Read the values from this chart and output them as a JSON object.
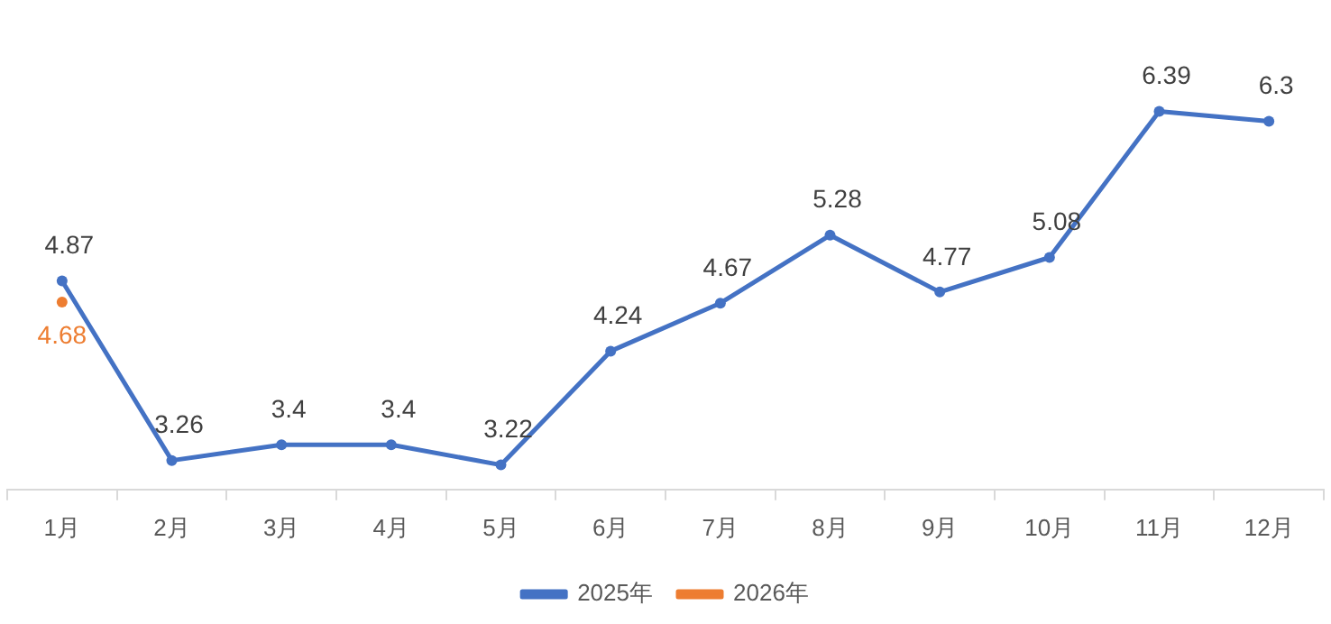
{
  "chart_data": {
    "type": "line",
    "categories": [
      "1月",
      "2月",
      "3月",
      "4月",
      "5月",
      "6月",
      "7月",
      "8月",
      "9月",
      "10月",
      "11月",
      "12月"
    ],
    "series": [
      {
        "name": "2025年",
        "color": "#4472c4",
        "values": [
          4.87,
          3.26,
          3.4,
          3.4,
          3.22,
          4.24,
          4.67,
          5.28,
          4.77,
          5.08,
          6.39,
          6.3
        ]
      },
      {
        "name": "2026年",
        "color": "#ed7d31",
        "values": [
          4.68,
          null,
          null,
          null,
          null,
          null,
          null,
          null,
          null,
          null,
          null,
          null
        ]
      }
    ],
    "tick_labels": "x",
    "grid": false,
    "legend": "bottom",
    "marker": "circle",
    "line_style": "solid",
    "data_labels": true
  }
}
